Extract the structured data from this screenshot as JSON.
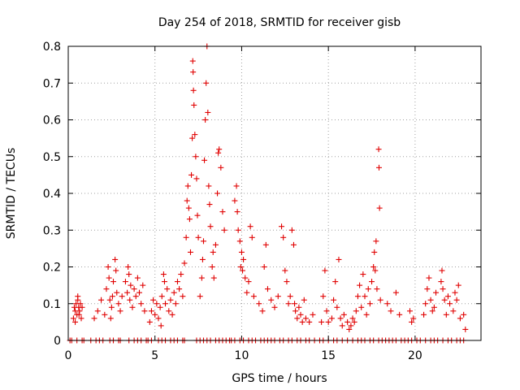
{
  "chart_data": {
    "type": "scatter",
    "title": "Day 254 of 2018, SRMTID for receiver gisb",
    "xlabel": "GPS time / hours",
    "ylabel": "SRMTID / TECUs",
    "xlim": [
      0,
      23.8
    ],
    "ylim": [
      0,
      0.8
    ],
    "x_ticks": [
      0,
      5,
      10,
      15,
      20
    ],
    "y_ticks": [
      0,
      0.1,
      0.2,
      0.3,
      0.4,
      0.5,
      0.6,
      0.7,
      0.8
    ],
    "x_tick_labels": [
      "0",
      "5",
      "10",
      "15",
      "20"
    ],
    "y_tick_labels": [
      "0",
      "0.1",
      "0.2",
      "0.3",
      "0.4",
      "0.5",
      "0.6",
      "0.7",
      "0.8"
    ],
    "grid": true,
    "marker": "+",
    "marker_color": "#e00000",
    "series": [
      {
        "name": "SRMTID",
        "points": [
          [
            0.3,
            0.06
          ],
          [
            0.35,
            0.09
          ],
          [
            0.4,
            0.08
          ],
          [
            0.45,
            0.1
          ],
          [
            0.5,
            0.07
          ],
          [
            0.55,
            0.11
          ],
          [
            0.6,
            0.09
          ],
          [
            0.65,
            0.08
          ],
          [
            0.7,
            0.1
          ],
          [
            0.75,
            0.06
          ],
          [
            0.8,
            0.09
          ],
          [
            0.4,
            0.05
          ],
          [
            0.55,
            0.12
          ],
          [
            0.62,
            0.07
          ],
          [
            1.5,
            0.06
          ],
          [
            1.7,
            0.08
          ],
          [
            1.9,
            0.11
          ],
          [
            2.1,
            0.07
          ],
          [
            2.2,
            0.14
          ],
          [
            2.3,
            0.2
          ],
          [
            2.35,
            0.17
          ],
          [
            2.4,
            0.11
          ],
          [
            2.45,
            0.06
          ],
          [
            2.5,
            0.09
          ],
          [
            2.55,
            0.12
          ],
          [
            2.6,
            0.16
          ],
          [
            2.7,
            0.22
          ],
          [
            2.75,
            0.19
          ],
          [
            2.8,
            0.13
          ],
          [
            2.9,
            0.1
          ],
          [
            3.0,
            0.08
          ],
          [
            3.1,
            0.12
          ],
          [
            3.3,
            0.16
          ],
          [
            3.4,
            0.13
          ],
          [
            3.45,
            0.2
          ],
          [
            3.5,
            0.18
          ],
          [
            3.55,
            0.11
          ],
          [
            3.6,
            0.15
          ],
          [
            3.7,
            0.09
          ],
          [
            3.8,
            0.14
          ],
          [
            3.9,
            0.12
          ],
          [
            4.0,
            0.17
          ],
          [
            4.1,
            0.13
          ],
          [
            4.2,
            0.1
          ],
          [
            4.3,
            0.15
          ],
          [
            4.4,
            0.08
          ],
          [
            4.7,
            0.05
          ],
          [
            4.8,
            0.08
          ],
          [
            4.9,
            0.11
          ],
          [
            5.0,
            0.07
          ],
          [
            5.1,
            0.1
          ],
          [
            5.2,
            0.06
          ],
          [
            5.3,
            0.09
          ],
          [
            5.35,
            0.04
          ],
          [
            5.4,
            0.12
          ],
          [
            5.5,
            0.18
          ],
          [
            5.55,
            0.16
          ],
          [
            5.6,
            0.1
          ],
          [
            5.7,
            0.14
          ],
          [
            5.8,
            0.08
          ],
          [
            5.9,
            0.11
          ],
          [
            6.0,
            0.07
          ],
          [
            6.1,
            0.13
          ],
          [
            6.2,
            0.1
          ],
          [
            6.3,
            0.16
          ],
          [
            6.4,
            0.14
          ],
          [
            6.5,
            0.18
          ],
          [
            6.6,
            0.12
          ],
          [
            6.7,
            0.21
          ],
          [
            6.8,
            0.28
          ],
          [
            6.85,
            0.38
          ],
          [
            6.9,
            0.42
          ],
          [
            6.95,
            0.36
          ],
          [
            7.0,
            0.33
          ],
          [
            7.05,
            0.24
          ],
          [
            7.1,
            0.45
          ],
          [
            7.15,
            0.55
          ],
          [
            7.18,
            0.76
          ],
          [
            7.2,
            0.73
          ],
          [
            7.22,
            0.68
          ],
          [
            7.25,
            0.64
          ],
          [
            7.3,
            0.56
          ],
          [
            7.35,
            0.5
          ],
          [
            7.4,
            0.44
          ],
          [
            7.45,
            0.34
          ],
          [
            7.5,
            0.28
          ],
          [
            7.6,
            0.12
          ],
          [
            7.7,
            0.17
          ],
          [
            7.75,
            0.22
          ],
          [
            7.8,
            0.27
          ],
          [
            7.85,
            0.49
          ],
          [
            7.9,
            0.6
          ],
          [
            7.95,
            0.7
          ],
          [
            8.0,
            0.8
          ],
          [
            8.05,
            0.62
          ],
          [
            8.1,
            0.42
          ],
          [
            8.15,
            0.37
          ],
          [
            8.2,
            0.31
          ],
          [
            8.3,
            0.2
          ],
          [
            8.35,
            0.24
          ],
          [
            8.4,
            0.17
          ],
          [
            8.5,
            0.26
          ],
          [
            8.6,
            0.4
          ],
          [
            8.65,
            0.51
          ],
          [
            8.7,
            0.52
          ],
          [
            8.8,
            0.47
          ],
          [
            8.9,
            0.35
          ],
          [
            9.0,
            0.3
          ],
          [
            9.6,
            0.38
          ],
          [
            9.7,
            0.42
          ],
          [
            9.75,
            0.35
          ],
          [
            9.8,
            0.3
          ],
          [
            9.9,
            0.27
          ],
          [
            9.95,
            0.2
          ],
          [
            10.0,
            0.24
          ],
          [
            10.05,
            0.19
          ],
          [
            10.1,
            0.22
          ],
          [
            10.2,
            0.17
          ],
          [
            10.3,
            0.13
          ],
          [
            10.4,
            0.16
          ],
          [
            10.5,
            0.31
          ],
          [
            10.6,
            0.28
          ],
          [
            10.7,
            0.12
          ],
          [
            11.0,
            0.1
          ],
          [
            11.2,
            0.08
          ],
          [
            11.3,
            0.2
          ],
          [
            11.4,
            0.26
          ],
          [
            11.5,
            0.14
          ],
          [
            11.7,
            0.11
          ],
          [
            11.9,
            0.09
          ],
          [
            12.1,
            0.12
          ],
          [
            12.3,
            0.31
          ],
          [
            12.4,
            0.28
          ],
          [
            12.5,
            0.19
          ],
          [
            12.6,
            0.16
          ],
          [
            12.7,
            0.1
          ],
          [
            12.8,
            0.12
          ],
          [
            12.9,
            0.3
          ],
          [
            13.0,
            0.26
          ],
          [
            13.05,
            0.1
          ],
          [
            13.1,
            0.08
          ],
          [
            13.2,
            0.06
          ],
          [
            13.3,
            0.09
          ],
          [
            13.4,
            0.07
          ],
          [
            13.5,
            0.05
          ],
          [
            13.6,
            0.11
          ],
          [
            13.7,
            0.06
          ],
          [
            13.9,
            0.05
          ],
          [
            14.1,
            0.07
          ],
          [
            14.6,
            0.05
          ],
          [
            14.7,
            0.12
          ],
          [
            14.8,
            0.19
          ],
          [
            14.9,
            0.08
          ],
          [
            15.0,
            0.05
          ],
          [
            15.2,
            0.06
          ],
          [
            15.3,
            0.11
          ],
          [
            15.4,
            0.16
          ],
          [
            15.5,
            0.09
          ],
          [
            15.6,
            0.22
          ],
          [
            15.7,
            0.06
          ],
          [
            15.8,
            0.04
          ],
          [
            15.9,
            0.07
          ],
          [
            16.1,
            0.05
          ],
          [
            16.2,
            0.03
          ],
          [
            16.3,
            0.04
          ],
          [
            16.4,
            0.06
          ],
          [
            16.5,
            0.05
          ],
          [
            16.6,
            0.08
          ],
          [
            16.7,
            0.12
          ],
          [
            16.8,
            0.15
          ],
          [
            16.9,
            0.09
          ],
          [
            17.0,
            0.18
          ],
          [
            17.1,
            0.12
          ],
          [
            17.2,
            0.07
          ],
          [
            17.3,
            0.14
          ],
          [
            17.4,
            0.1
          ],
          [
            17.5,
            0.16
          ],
          [
            17.6,
            0.2
          ],
          [
            17.65,
            0.24
          ],
          [
            17.7,
            0.19
          ],
          [
            17.75,
            0.27
          ],
          [
            17.8,
            0.14
          ],
          [
            17.9,
            0.52
          ],
          [
            17.92,
            0.47
          ],
          [
            17.95,
            0.36
          ],
          [
            18.0,
            0.11
          ],
          [
            18.4,
            0.1
          ],
          [
            18.6,
            0.08
          ],
          [
            18.9,
            0.13
          ],
          [
            19.1,
            0.07
          ],
          [
            19.7,
            0.08
          ],
          [
            19.8,
            0.05
          ],
          [
            19.9,
            0.06
          ],
          [
            20.5,
            0.07
          ],
          [
            20.6,
            0.1
          ],
          [
            20.7,
            0.14
          ],
          [
            20.8,
            0.17
          ],
          [
            20.9,
            0.11
          ],
          [
            21.0,
            0.08
          ],
          [
            21.1,
            0.09
          ],
          [
            21.2,
            0.13
          ],
          [
            21.5,
            0.16
          ],
          [
            21.55,
            0.19
          ],
          [
            21.6,
            0.14
          ],
          [
            21.7,
            0.11
          ],
          [
            21.8,
            0.07
          ],
          [
            21.9,
            0.12
          ],
          [
            22.0,
            0.1
          ],
          [
            22.2,
            0.08
          ],
          [
            22.3,
            0.13
          ],
          [
            22.4,
            0.11
          ],
          [
            22.5,
            0.15
          ],
          [
            22.6,
            0.06
          ],
          [
            22.8,
            0.07
          ],
          [
            22.9,
            0.03
          ]
        ],
        "zero_points": [
          0.1,
          0.2,
          0.5,
          0.8,
          0.9,
          1.3,
          1.6,
          1.8,
          2.0,
          2.4,
          2.6,
          2.9,
          3.0,
          3.5,
          3.8,
          4.0,
          4.2,
          4.5,
          4.6,
          4.8,
          5.2,
          5.4,
          5.6,
          5.9,
          6.1,
          6.3,
          6.6,
          6.7,
          7.4,
          7.6,
          7.8,
          8.0,
          8.2,
          8.5,
          8.7,
          8.9,
          9.1,
          9.3,
          9.4,
          9.6,
          9.9,
          10.1,
          10.4,
          10.6,
          10.8,
          11.1,
          11.3,
          11.5,
          11.7,
          11.9,
          12.2,
          12.4,
          12.7,
          12.9,
          13.2,
          13.4,
          13.7,
          13.9,
          14.2,
          14.5,
          14.7,
          15.0,
          15.3,
          15.5,
          15.8,
          16.1,
          16.4,
          16.7,
          16.9,
          17.1,
          17.4,
          17.6,
          17.9,
          18.1,
          18.3,
          18.5,
          18.7,
          18.9,
          19.2,
          19.4,
          19.6,
          19.8,
          20.1,
          20.3,
          20.6,
          20.9,
          21.1,
          21.3,
          21.6,
          21.9,
          22.1,
          22.4,
          22.6,
          22.8
        ]
      }
    ]
  }
}
